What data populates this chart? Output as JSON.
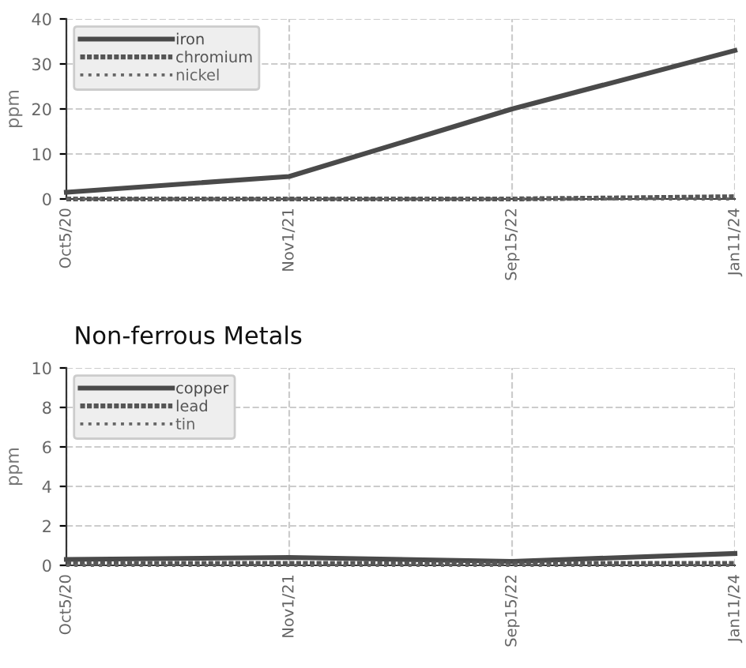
{
  "chart_data": [
    {
      "type": "line",
      "ylabel": "ppm",
      "categories": [
        "Oct5/20",
        "Nov1/21",
        "Sep15/22",
        "Jan11/24"
      ],
      "ylim": [
        0,
        40
      ],
      "yticks": [
        0,
        10,
        20,
        30,
        40
      ],
      "grid": true,
      "legend": "top left",
      "series": [
        {
          "name": "iron",
          "color": "#4a4a4a",
          "line_style": "solid",
          "values": [
            1.5,
            5,
            20,
            33
          ]
        },
        {
          "name": "chromium",
          "color": "#555555",
          "line_style": "dashed",
          "values": [
            0,
            0,
            0,
            0.5
          ]
        },
        {
          "name": "nickel",
          "color": "#666666",
          "line_style": "dotted",
          "values": [
            0,
            0,
            0,
            0
          ]
        }
      ]
    },
    {
      "type": "line",
      "title": "Non-ferrous Metals",
      "ylabel": "ppm",
      "categories": [
        "Oct5/20",
        "Nov1/21",
        "Sep15/22",
        "Jan11/24"
      ],
      "ylim": [
        0,
        10
      ],
      "yticks": [
        0,
        2,
        4,
        6,
        8,
        10
      ],
      "grid": true,
      "legend": "top left",
      "series": [
        {
          "name": "copper",
          "color": "#4a4a4a",
          "line_style": "solid",
          "values": [
            0.3,
            0.4,
            0.2,
            0.6
          ]
        },
        {
          "name": "lead",
          "color": "#555555",
          "line_style": "dashed",
          "values": [
            0.1,
            0.1,
            0.1,
            0.1
          ]
        },
        {
          "name": "tin",
          "color": "#666666",
          "line_style": "dotted",
          "values": [
            0,
            0,
            0,
            0
          ]
        }
      ]
    }
  ]
}
